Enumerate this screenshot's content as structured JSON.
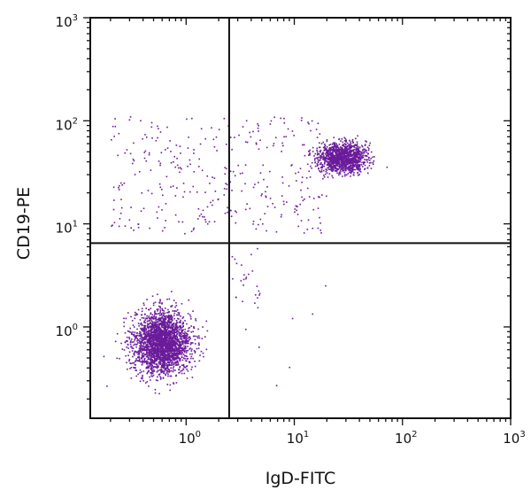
{
  "chart_data": {
    "type": "scatter",
    "xlabel": "IgD-FITC",
    "ylabel": "CD19-PE",
    "x_scale": "log",
    "y_scale": "log",
    "xlim": [
      0.13,
      1000
    ],
    "ylim": [
      0.13,
      1000
    ],
    "x_ticks": [
      {
        "base": "10",
        "exp": "0",
        "value": 1
      },
      {
        "base": "10",
        "exp": "1",
        "value": 10
      },
      {
        "base": "10",
        "exp": "2",
        "value": 100
      },
      {
        "base": "10",
        "exp": "3",
        "value": 1000
      }
    ],
    "y_ticks": [
      {
        "base": "10",
        "exp": "0",
        "value": 1
      },
      {
        "base": "10",
        "exp": "1",
        "value": 10
      },
      {
        "base": "10",
        "exp": "2",
        "value": 100
      },
      {
        "base": "10",
        "exp": "3",
        "value": 1000
      }
    ],
    "quadrant_gates": {
      "x": 2.5,
      "y": 6.5
    },
    "grid": false,
    "point_color": "#6a1b9a",
    "populations": [
      {
        "center": [
          0.6,
          0.7
        ],
        "spread_log10": [
          0.13,
          0.15
        ],
        "count": 2600
      },
      {
        "center": [
          28,
          44
        ],
        "spread_log10": [
          0.11,
          0.07
        ],
        "count": 1300
      },
      {
        "x_range": [
          0.2,
          20
        ],
        "y_range": [
          8,
          110
        ],
        "count": 340
      },
      {
        "x_range": [
          2.5,
          5
        ],
        "y_range": [
          1.2,
          6
        ],
        "count": 25
      },
      {
        "x_range": [
          3,
          20
        ],
        "y_range": [
          0.2,
          3
        ],
        "count": 8
      }
    ]
  }
}
